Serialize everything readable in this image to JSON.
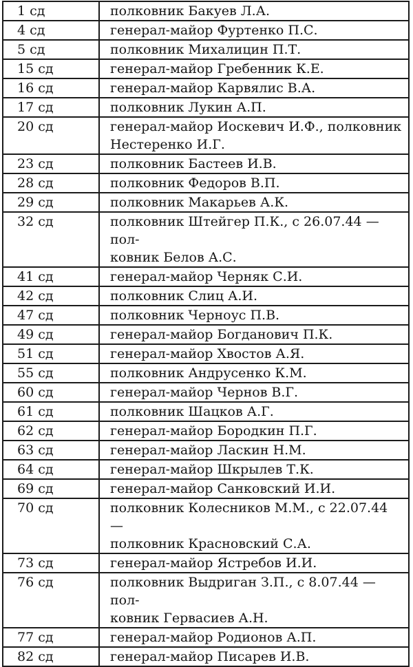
{
  "page": {
    "background_color": "#ffffff",
    "border_color": "#1b1b1b",
    "text_color": "#161616"
  },
  "table": {
    "description": "two-column table: rifle division number and commander rank/name",
    "rows": [
      {
        "division": "1 сд",
        "commander": "полковник Бакуев Л.А."
      },
      {
        "division": "4 сд",
        "commander": "генерал-майор Фуртенко П.С."
      },
      {
        "division": "5 сд",
        "commander": "полковник Михалицин П.Т."
      },
      {
        "division": "15 сд",
        "commander": "генерал-майор Гребенник К.Е."
      },
      {
        "division": "16 сд",
        "commander": "генерал-майор Карвялис В.А."
      },
      {
        "division": "17 сд",
        "commander": "полковник Лукин А.П."
      },
      {
        "division": "20 сд",
        "commander": "генерал-майор Иоскевич И.Ф., полковник\nНестеренко И.Г."
      },
      {
        "division": "23 сд",
        "commander": "полковник Бастеев И.В."
      },
      {
        "division": "28 сд",
        "commander": "полковник Федоров В.П."
      },
      {
        "division": "29 сд",
        "commander": "полковник Макарьев А.К."
      },
      {
        "division": "32 сд",
        "commander": "полковник Штейгер П.К., с 26.07.44 — пол-\nковник Белов А.С."
      },
      {
        "division": "41 сд",
        "commander": "генерал-майор Черняк С.И."
      },
      {
        "division": "42 сд",
        "commander": "полковник Слиц А.И."
      },
      {
        "division": "47 сд",
        "commander": "полковник Черноус П.В."
      },
      {
        "division": "49 сд",
        "commander": "генерал-майор Богданович П.К."
      },
      {
        "division": "51 сд",
        "commander": "генерал-майор Хвостов А.Я."
      },
      {
        "division": "55 сд",
        "commander": "полковник Андрусенко К.М."
      },
      {
        "division": "60 сд",
        "commander": "генерал-майор Чернов В.Г."
      },
      {
        "division": "61 сд",
        "commander": "полковник Шацков А.Г."
      },
      {
        "division": "62 сд",
        "commander": "генерал-майор Бородкин П.Г."
      },
      {
        "division": "63 сд",
        "commander": "генерал-майор Ласкин Н.М."
      },
      {
        "division": "64 сд",
        "commander": "генерал-майор Шкрылев Т.К."
      },
      {
        "division": "69 сд",
        "commander": "генерал-майор Санковский И.И."
      },
      {
        "division": "70 сд",
        "commander": "полковник Колесников М.М., с 22.07.44 —\nполковник Красновский С.А."
      },
      {
        "division": "73 сд",
        "commander": "генерал-майор Ястребов И.И."
      },
      {
        "division": "76 сд",
        "commander": "полковник Выдриган З.П., с 8.07.44 — пол-\nковник Гервасиев А.Н."
      },
      {
        "division": "77 сд",
        "commander": "генерал-майор Родионов А.П."
      },
      {
        "division": "82 сд",
        "commander": "генерал-майор Писарев И.В."
      }
    ]
  }
}
